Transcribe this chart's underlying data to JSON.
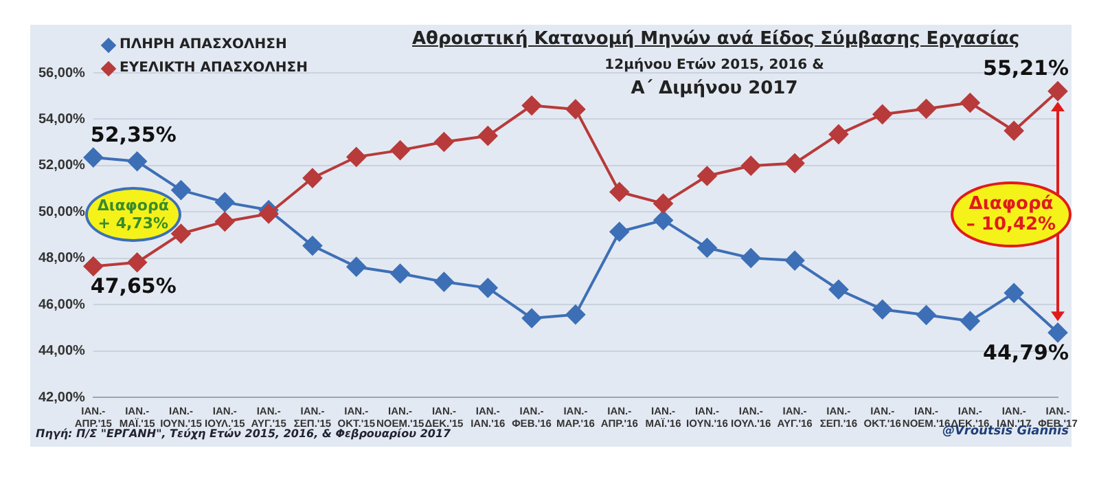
{
  "chart_data": {
    "type": "line",
    "title": "Αθροιστική Κατανομή Μηνών ανά Είδος Σύμβασης Εργασίας",
    "subtitle": "12μήνου Ετών 2015, 2016 &\nΑ΄ Διμήνου 2017",
    "categories": [
      "ΙΑΝ.- ΑΠΡ.'15",
      "ΙΑΝ.- ΜΑΪ.'15",
      "ΙΑΝ.- ΙΟΥΝ.'15",
      "ΙΑΝ.- ΙΟΥΛ.'15",
      "ΙΑΝ.- ΑΥΓ.'15",
      "ΙΑΝ.- ΣΕΠ.'15",
      "ΙΑΝ.- ΟΚΤ.'15",
      "ΙΑΝ.- ΝΟΕΜ.'15",
      "ΙΑΝ.- ΔΕΚ.'15",
      "ΙΑΝ.- ΙΑΝ.'16",
      "ΙΑΝ.- ΦΕΒ.'16",
      "ΙΑΝ.- ΜΑΡ.'16",
      "ΙΑΝ.- ΑΠΡ.'16",
      "ΙΑΝ.- ΜΑΪ.'16",
      "ΙΑΝ.- ΙΟΥΝ.'16",
      "ΙΑΝ.- ΙΟΥΛ.'16",
      "ΙΑΝ.- ΑΥΓ.'16",
      "ΙΑΝ.- ΣΕΠ.'16",
      "ΙΑΝ.- ΟΚΤ.'16",
      "ΙΑΝ.- ΝΟΕΜ.'16",
      "ΙΑΝ.- ΔΕΚ.'16",
      "ΙΑΝ.- ΙΑΝ.'17",
      "ΙΑΝ.- ΦΕΒ.'17"
    ],
    "series": [
      {
        "name": "ΠΛΗΡΗ ΑΠΑΣΧΟΛΗΣΗ",
        "color": "#3d6fb6",
        "values": [
          52.35,
          52.18,
          50.94,
          50.42,
          50.08,
          48.54,
          47.63,
          47.34,
          46.98,
          46.72,
          45.41,
          45.57,
          49.14,
          49.64,
          48.45,
          48.01,
          47.9,
          46.65,
          45.79,
          45.55,
          45.29,
          46.5,
          44.79
        ],
        "value_labels": [
          "52,35%",
          null,
          null,
          null,
          null,
          null,
          null,
          null,
          null,
          null,
          null,
          null,
          null,
          null,
          null,
          null,
          null,
          null,
          null,
          null,
          null,
          null,
          "44,79%"
        ]
      },
      {
        "name": "ΕΥΕΛΙΚΤΗ ΑΠΑΣΧΟΛΗΣΗ",
        "color": "#b83a3a",
        "values": [
          47.65,
          47.82,
          49.06,
          49.58,
          49.92,
          51.46,
          52.37,
          52.66,
          53.02,
          53.28,
          54.59,
          54.43,
          50.86,
          50.36,
          51.55,
          51.99,
          52.1,
          53.35,
          54.21,
          54.45,
          54.71,
          53.5,
          55.21
        ],
        "value_labels": [
          "47,65%",
          null,
          null,
          null,
          null,
          null,
          null,
          null,
          null,
          null,
          null,
          null,
          null,
          null,
          null,
          null,
          null,
          null,
          null,
          null,
          null,
          null,
          "55,21%"
        ]
      }
    ],
    "ylim": [
      42,
      56
    ],
    "yticks": [
      {
        "value": 42,
        "label": "42,00%"
      },
      {
        "value": 44,
        "label": "44,00%"
      },
      {
        "value": 46,
        "label": "46,00%"
      },
      {
        "value": 48,
        "label": "48,00%"
      },
      {
        "value": 50,
        "label": "50,00%"
      },
      {
        "value": 52,
        "label": "52,00%"
      },
      {
        "value": 54,
        "label": "54,00%"
      },
      {
        "value": 56,
        "label": "56,00%"
      }
    ],
    "grid": "y",
    "legend": "top left",
    "marker": "diamond",
    "line_style": "solid",
    "annotations": [
      "Διαφορά\n+ 4,73%",
      "Διαφορά\n– 10,42%",
      "Πηγή: Π/Σ \"ΕΡΓΑΝΗ\", Τεύχη Ετών 2015, 2016, & Φεβρουαρίου 2017",
      "@Vroutsis Giannis"
    ]
  }
}
